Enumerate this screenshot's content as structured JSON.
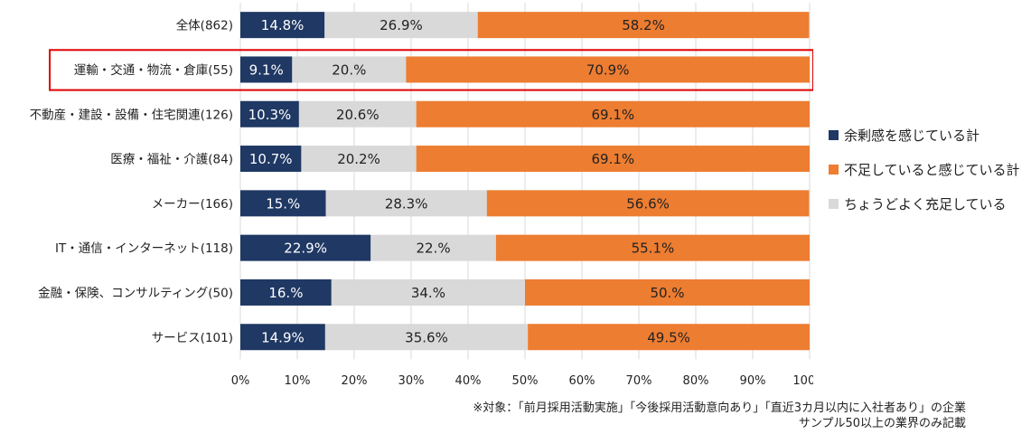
{
  "chart_data": {
    "type": "bar",
    "orientation": "horizontal",
    "stacked": true,
    "categories": [
      "全体(862)",
      "運輸・交通・物流・倉庫(55)",
      "不動産・建設・設備・住宅関連(126)",
      "医療・福祉・介護(84)",
      "メーカー(166)",
      "IT・通信・インターネット(118)",
      "金融・保険、コンサルティング(50)",
      "サービス(101)"
    ],
    "highlighted_category": "運輸・交通・物流・倉庫(55)",
    "series": [
      {
        "name": "余剰感を感じている計",
        "color": "#1f3864",
        "values": [
          14.8,
          9.1,
          10.3,
          10.7,
          15.0,
          22.9,
          16.0,
          14.9
        ],
        "labels": [
          "14.8%",
          "9.1%",
          "10.3%",
          "10.7%",
          "15.%",
          "22.9%",
          "16.%",
          "14.9%"
        ]
      },
      {
        "name": "ちょうどよく充足している",
        "color": "#d9d9d9",
        "values": [
          26.9,
          20.0,
          20.6,
          20.2,
          28.3,
          22.0,
          34.0,
          35.6
        ],
        "labels": [
          "26.9%",
          "20.%",
          "20.6%",
          "20.2%",
          "28.3%",
          "22.%",
          "34.%",
          "35.6%"
        ]
      },
      {
        "name": "不足していると感じている計",
        "color": "#ed7d31",
        "values": [
          58.2,
          70.9,
          69.1,
          69.1,
          56.6,
          55.1,
          50.0,
          49.5
        ],
        "labels": [
          "58.2%",
          "70.9%",
          "69.1%",
          "69.1%",
          "56.6%",
          "55.1%",
          "50.%",
          "49.5%"
        ]
      }
    ],
    "x_ticks": [
      "0%",
      "10%",
      "20%",
      "30%",
      "40%",
      "50%",
      "60%",
      "70%",
      "80%",
      "90%",
      "100%"
    ],
    "xlim": [
      0,
      100
    ],
    "legend_order": [
      "余剰感を感じている計",
      "不足していると感じている計",
      "ちょうどよく充足している"
    ],
    "legend_position": "right",
    "grid": true
  },
  "footnote": {
    "line1": "※対象：「前月採用活動実施」「今後採用活動意向あり」「直近3カ月以内に入社者あり」の企業",
    "line2": "サンプル50以上の業界のみ記載"
  },
  "colors": {
    "highlight_border": "#e00000",
    "grid": "#d9d9d9"
  }
}
